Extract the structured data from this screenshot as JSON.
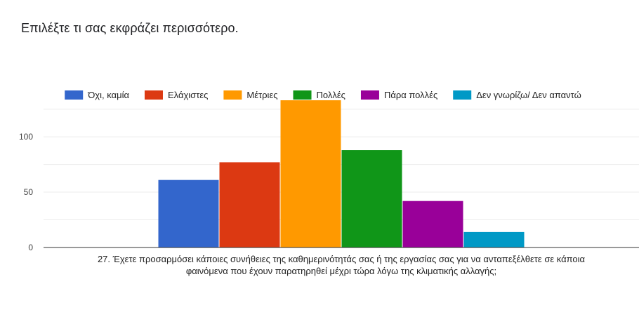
{
  "title": "Επιλέξτε τι σας εκφράζει περισσότερο.",
  "chart_data": {
    "type": "bar",
    "title": "",
    "categories": [
      "27. Έχετε προσαρμόσει κάποιες συνήθειες της καθημερινότητάς σας ή της εργασίας σας για να ανταπεξέλθετε σε κάποια φαινόμενα που έχουν παρατηρηθεί μέχρι τώρα λόγω της κλιματικής αλλαγής;"
    ],
    "xlabel_lines": [
      "27. Έχετε προσαρμόσει κάποιες συνήθειες της καθημερινότητάς σας ή της εργασίας σας για να ανταπεξέλθετε σε κάποια",
      "φαινόμενα που έχουν παρατηρηθεί μέχρι τώρα λόγω της κλιματικής αλλαγής;"
    ],
    "ylabel": "",
    "ylim": [
      0,
      133
    ],
    "yticks": [
      0,
      50,
      100
    ],
    "grid": true,
    "legend_position": "top",
    "series": [
      {
        "name": "Όχι, καμία",
        "color": "#3366cc",
        "values": [
          61
        ]
      },
      {
        "name": "Ελάχιστες",
        "color": "#dc3912",
        "values": [
          77
        ]
      },
      {
        "name": "Μέτριες",
        "color": "#ff9900",
        "values": [
          133
        ]
      },
      {
        "name": "Πολλές",
        "color": "#109618",
        "values": [
          88
        ]
      },
      {
        "name": "Πάρα πολλές",
        "color": "#990099",
        "values": [
          42
        ]
      },
      {
        "name": "Δεν γνωρίζω/ Δεν απαντώ",
        "color": "#0099c6",
        "values": [
          14
        ]
      }
    ]
  }
}
